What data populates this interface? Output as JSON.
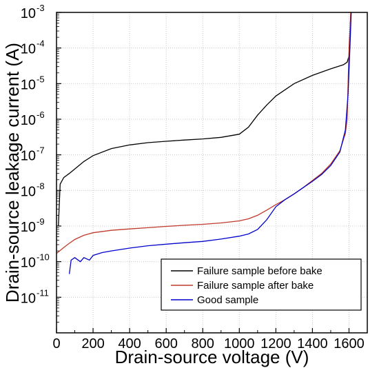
{
  "chart_data": {
    "type": "line",
    "title": "",
    "xlabel": "Drain-source voltage (V)",
    "ylabel": "Drain-source leakage current (A)",
    "xlim": [
      0,
      1700
    ],
    "ylim": [
      1e-12,
      0.001
    ],
    "y_scale": "log",
    "grid": true,
    "legend_position": "bottom-right",
    "x_ticks": [
      0,
      200,
      400,
      600,
      800,
      1000,
      1200,
      1400,
      1600
    ],
    "x_tick_labels": [
      "0",
      "200",
      "400",
      "600",
      "800",
      "1000",
      "1200",
      "1400",
      "1600"
    ],
    "y_tick_exponents": [
      -11,
      -10,
      -9,
      -8,
      -7,
      -6,
      -5,
      -4,
      -3
    ],
    "y_tick_labels": [
      "10",
      "10",
      "10",
      "10",
      "10",
      "10",
      "10",
      "10",
      "10"
    ],
    "y_tick_superscripts": [
      "-11",
      "-10",
      "-9",
      "-8",
      "-7",
      "-6",
      "-5",
      "-4",
      "-3"
    ],
    "series": [
      {
        "name": "Failure sample before bake",
        "color": "#000000",
        "x": [
          10,
          20,
          40,
          70,
          100,
          150,
          200,
          300,
          400,
          500,
          600,
          700,
          800,
          900,
          1000,
          1050,
          1100,
          1150,
          1200,
          1300,
          1400,
          1500,
          1570,
          1590,
          1600,
          1610
        ],
        "y": [
          1e-09,
          1.5e-08,
          2.3e-08,
          3e-08,
          4e-08,
          6.5e-08,
          9.5e-08,
          1.5e-07,
          1.9e-07,
          2.2e-07,
          2.4e-07,
          2.6e-07,
          2.8e-07,
          3.1e-07,
          3.8e-07,
          6e-07,
          1.3e-06,
          2.5e-06,
          4.5e-06,
          1e-05,
          1.7e-05,
          2.6e-05,
          3.4e-05,
          4e-05,
          6e-05,
          0.001
        ]
      },
      {
        "name": "Failure sample after bake",
        "color": "#c0392b",
        "x": [
          0,
          40,
          60,
          100,
          150,
          200,
          300,
          400,
          500,
          600,
          700,
          800,
          900,
          1000,
          1050,
          1100,
          1150,
          1200,
          1250,
          1300,
          1350,
          1400,
          1450,
          1500,
          1550,
          1580,
          1590,
          1600,
          1610
        ],
        "y": [
          1.7e-10,
          2.5e-10,
          3e-10,
          4.2e-10,
          5.5e-10,
          6.5e-10,
          7.6e-10,
          8.3e-10,
          9e-10,
          9.8e-10,
          1.05e-09,
          1.12e-09,
          1.22e-09,
          1.4e-09,
          1.6e-09,
          2e-09,
          2.8e-09,
          4e-09,
          5.5e-09,
          8e-09,
          1.2e-08,
          1.9e-08,
          3e-08,
          5.5e-08,
          1.3e-07,
          4e-07,
          1e-06,
          0.0001,
          0.001
        ]
      },
      {
        "name": "Good sample",
        "color": "#0000cc",
        "x": [
          70,
          80,
          100,
          130,
          150,
          180,
          200,
          250,
          300,
          400,
          500,
          600,
          700,
          800,
          900,
          1000,
          1050,
          1100,
          1150,
          1200,
          1250,
          1300,
          1350,
          1400,
          1450,
          1500,
          1550,
          1580,
          1595,
          1605,
          1612
        ],
        "y": [
          4.5e-11,
          1.1e-10,
          1.3e-10,
          1e-10,
          1.3e-10,
          1.1e-10,
          1.5e-10,
          1.8e-10,
          2e-10,
          2.4e-10,
          2.8e-10,
          3.1e-10,
          3.4e-10,
          3.7e-10,
          4.3e-10,
          5.2e-10,
          6e-10,
          8e-10,
          1.5e-09,
          3.5e-09,
          5.5e-09,
          8e-09,
          1.2e-08,
          1.8e-08,
          2.8e-08,
          5e-08,
          1.2e-07,
          5e-07,
          5e-06,
          0.0001,
          0.001
        ]
      }
    ]
  }
}
